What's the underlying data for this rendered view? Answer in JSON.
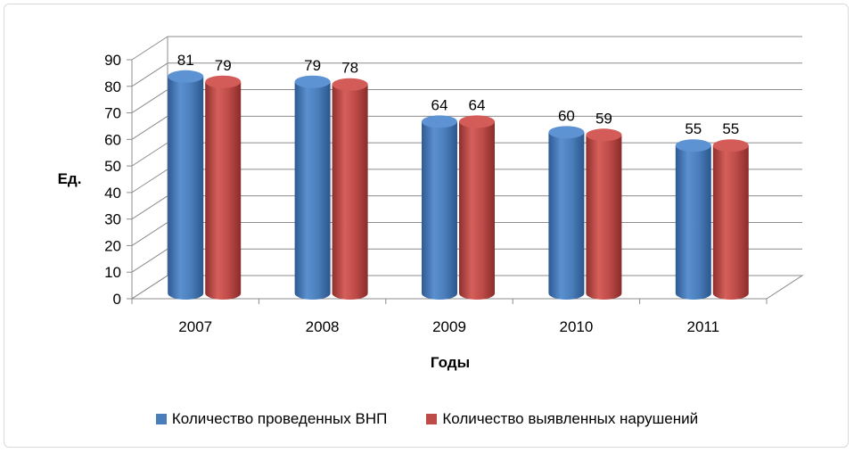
{
  "chart_data": {
    "type": "bar",
    "categories": [
      "2007",
      "2008",
      "2009",
      "2010",
      "2011"
    ],
    "series": [
      {
        "name": "Количество проведенных ВНП",
        "values": [
          81,
          79,
          64,
          60,
          55
        ],
        "color": "#4a7ebb"
      },
      {
        "name": "Количество выявленных нарушений",
        "values": [
          79,
          78,
          64,
          59,
          55
        ],
        "color": "#be4b48"
      }
    ],
    "xlabel": "Годы",
    "ylabel": "Ед.",
    "ylim": [
      0,
      90
    ],
    "yticks": [
      "0",
      "10",
      "20",
      "30",
      "40",
      "50",
      "60",
      "70",
      "80",
      "90"
    ],
    "grid": true,
    "legend_position": "bottom"
  }
}
